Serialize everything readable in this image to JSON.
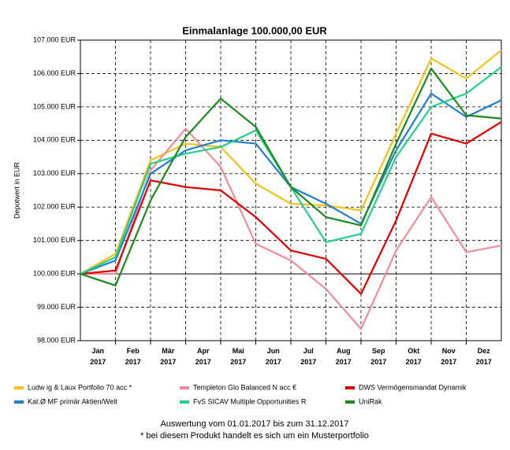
{
  "chart_data": {
    "type": "line",
    "title": "Einmalanlage 100.000,00 EUR",
    "y_label": "Depotwert in EUR",
    "x": [
      0,
      1,
      2,
      3,
      4,
      5,
      6,
      7,
      8,
      9,
      10,
      11,
      12
    ],
    "xlim": [
      0,
      12
    ],
    "xticks": [
      {
        "value": 0.5,
        "label": "Jan 2017"
      },
      {
        "value": 1.5,
        "label": "Feb 2017"
      },
      {
        "value": 2.5,
        "label": "Mär 2017"
      },
      {
        "value": 3.5,
        "label": "Apr 2017"
      },
      {
        "value": 4.5,
        "label": "Mai 2017"
      },
      {
        "value": 5.5,
        "label": "Jun 2017"
      },
      {
        "value": 6.5,
        "label": "Jul 2017"
      },
      {
        "value": 7.5,
        "label": "Aug 2017"
      },
      {
        "value": 8.5,
        "label": "Sep 2017"
      },
      {
        "value": 9.5,
        "label": "Okt 2017"
      },
      {
        "value": 10.5,
        "label": "Nov 2017"
      },
      {
        "value": 11.5,
        "label": "Dez 2017"
      }
    ],
    "ylim": [
      98000,
      107000
    ],
    "yticks": [
      {
        "value": 98000,
        "label": "98.000 EUR"
      },
      {
        "value": 99000,
        "label": "99.000 EUR"
      },
      {
        "value": 100000,
        "label": "100.000 EUR"
      },
      {
        "value": 101000,
        "label": "101.000 EUR"
      },
      {
        "value": 102000,
        "label": "102.000 EUR"
      },
      {
        "value": 103000,
        "label": "103.000 EUR"
      },
      {
        "value": 104000,
        "label": "104.000 EUR"
      },
      {
        "value": 105000,
        "label": "105.000 EUR"
      },
      {
        "value": 106000,
        "label": "106.000 EUR"
      },
      {
        "value": 107000,
        "label": "107.000 EUR"
      }
    ],
    "grid": true,
    "baseline": 100000,
    "legend": "bottom",
    "series": [
      {
        "name": "Ludw ig & Laux Portfolio 70 acc *",
        "color": "#f2c21b",
        "values": [
          100000,
          100600,
          103400,
          103900,
          103800,
          102700,
          102100,
          102050,
          101900,
          104200,
          106450,
          105850,
          106700
        ]
      },
      {
        "name": "Templeton Glo Balanced N acc €",
        "color": "#f08c9a",
        "values": [
          100000,
          100000,
          103100,
          104350,
          103200,
          100900,
          100400,
          99550,
          98350,
          100700,
          102300,
          100650,
          100850
        ]
      },
      {
        "name": "DWS Vermögensmandat Dynamik",
        "color": "#e00000",
        "values": [
          100000,
          100100,
          102800,
          102600,
          102500,
          101700,
          100700,
          100450,
          99400,
          101600,
          104200,
          103900,
          104550
        ]
      },
      {
        "name": "Kat.Ø MF primär Aktien/Welt",
        "color": "#1e7fd0",
        "values": [
          100000,
          100400,
          103000,
          103700,
          104000,
          103900,
          102600,
          102100,
          101500,
          103700,
          105400,
          104700,
          105200
        ]
      },
      {
        "name": "FvS SICAV Multiple Opportunities R",
        "color": "#22d08a",
        "values": [
          100000,
          100500,
          103300,
          103600,
          103800,
          104300,
          102600,
          100950,
          101200,
          103500,
          105000,
          105400,
          106200
        ]
      },
      {
        "name": "UniRak",
        "color": "#1a8a1a",
        "values": [
          100000,
          99650,
          102200,
          104100,
          105250,
          104400,
          102600,
          101700,
          101450,
          103900,
          106150,
          104750,
          104650
        ]
      }
    ],
    "footnotes": [
      "Auswertung vom 01.01.2017 bis zum 31.12.2017",
      "* bei diesem Produkt handelt es sich um ein Musterportfolio"
    ]
  }
}
